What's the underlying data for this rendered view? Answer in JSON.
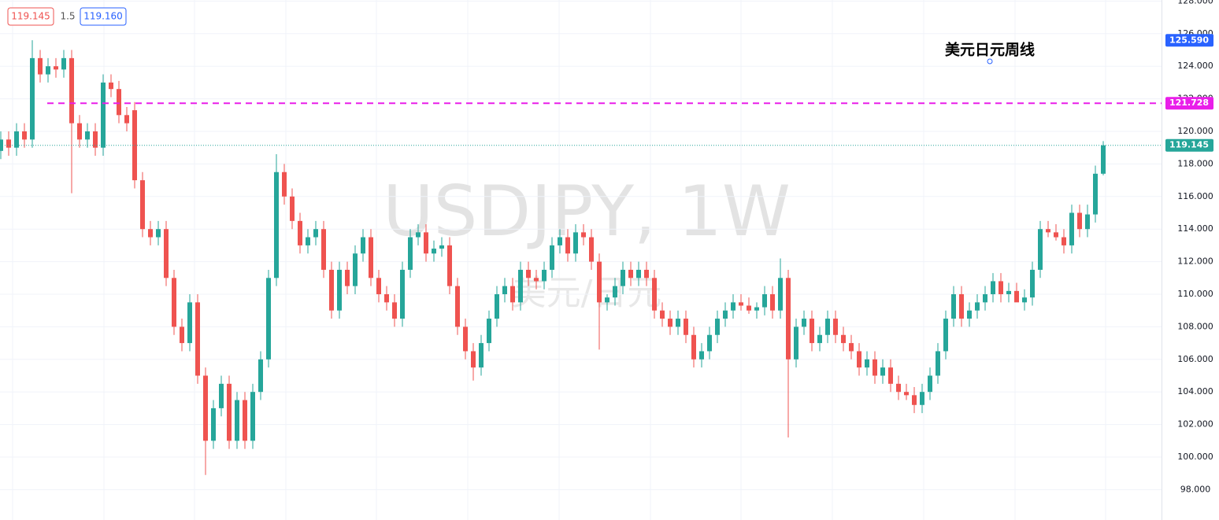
{
  "chart_data": {
    "type": "candlestick",
    "title": "USDJPY, 1W",
    "subtitle": "美元/日元",
    "annotation": "美元日元周线",
    "up_color": "#26a69a",
    "down_color": "#ef5350",
    "ylim": [
      96.135,
      128.068
    ],
    "yticks": [
      {
        "value": 98,
        "label": "98.000"
      },
      {
        "value": 100,
        "label": "100.000"
      },
      {
        "value": 102,
        "label": "102.000"
      },
      {
        "value": 104,
        "label": "104.000"
      },
      {
        "value": 106,
        "label": "106.000"
      },
      {
        "value": 108,
        "label": "108.000"
      },
      {
        "value": 110,
        "label": "110.000"
      },
      {
        "value": 112,
        "label": "112.000"
      },
      {
        "value": 114,
        "label": "114.000"
      },
      {
        "value": 116,
        "label": "116.000"
      },
      {
        "value": 118,
        "label": "118.000"
      },
      {
        "value": 120,
        "label": "120.000"
      },
      {
        "value": 122,
        "label": "122.000"
      },
      {
        "value": 124,
        "label": "124.000"
      },
      {
        "value": 126,
        "label": "126.000"
      },
      {
        "value": 128,
        "label": "128.000"
      }
    ],
    "grid": true,
    "legend": {
      "ask": "119.145",
      "spread": "1.5",
      "bid": "119.160"
    },
    "price_labels": [
      {
        "value": 125.59,
        "label": "125.590",
        "color": "#2962ff"
      },
      {
        "value": 121.728,
        "label": "121.728",
        "color": "#e91ee9",
        "line": "dashed"
      },
      {
        "value": 119.145,
        "label": "119.145",
        "color": "#26a69a",
        "line": "dotted"
      }
    ],
    "open": [
      118.8,
      119.5,
      119.0,
      120.0,
      119.5,
      124.5,
      123.5,
      124.0,
      123.8,
      124.5,
      120.5,
      119.5,
      120.0,
      119.0,
      123.0,
      122.6,
      121.0,
      121.3,
      117.0,
      114.0,
      113.5,
      114.0,
      111.0,
      108.0,
      107.0,
      109.5,
      105.0,
      101.0,
      103.0,
      104.5,
      101.0,
      103.5,
      101.0,
      104.0,
      106.0,
      111.0,
      117.5,
      116.0,
      114.5,
      113.0,
      113.5,
      114.0,
      111.5,
      109.0,
      111.5,
      110.5,
      112.5,
      113.5,
      111.0,
      110.0,
      109.5,
      108.5,
      111.5,
      113.5,
      113.8,
      112.5,
      112.8,
      113.0,
      110.5,
      108.0,
      106.5,
      105.5,
      107.0,
      108.5,
      110.0,
      110.5,
      109.5,
      111.5,
      111.0,
      110.8,
      111.5,
      113.0,
      113.5,
      112.5,
      113.8,
      113.5,
      112.0,
      109.5,
      109.8,
      110.5,
      111.5,
      111.0,
      111.5,
      111.0,
      109.0,
      108.5,
      108.0,
      108.5,
      107.5,
      106.0,
      106.5,
      107.5,
      108.5,
      109.0,
      109.5,
      109.3,
      109.0,
      109.2,
      110.0,
      109.0,
      111.0,
      106.0,
      108.0,
      108.5,
      107.0,
      107.5,
      108.5,
      107.5,
      107.0,
      106.5,
      105.5,
      106.0,
      105.0,
      105.5,
      104.5,
      104.0,
      103.8,
      103.2,
      104.0,
      105.0,
      106.5,
      108.5,
      110.0,
      108.5,
      109.0,
      109.5,
      110.0,
      110.8,
      110.0,
      110.2,
      109.5,
      109.8,
      111.5,
      114.0,
      113.8,
      113.5,
      113.0,
      115.0,
      114.0,
      114.9,
      117.4
    ],
    "high": [
      120.0,
      120.0,
      120.5,
      120.5,
      125.6,
      125.0,
      124.5,
      124.5,
      125.0,
      125.0,
      121.0,
      120.5,
      120.5,
      123.5,
      123.5,
      123.1,
      121.5,
      121.8,
      117.5,
      114.5,
      114.5,
      114.5,
      111.5,
      108.5,
      110.0,
      110.0,
      105.5,
      103.5,
      105.0,
      105.0,
      104.0,
      104.0,
      104.5,
      106.5,
      111.5,
      118.6,
      118.0,
      116.5,
      115.0,
      114.0,
      114.5,
      114.5,
      112.0,
      112.0,
      112.0,
      113.0,
      114.0,
      114.0,
      111.5,
      110.5,
      110.0,
      112.0,
      114.0,
      114.3,
      114.3,
      113.3,
      113.5,
      113.5,
      111.0,
      108.5,
      107.0,
      107.5,
      109.0,
      110.5,
      111.0,
      111.0,
      112.0,
      112.0,
      111.5,
      112.0,
      113.5,
      114.0,
      114.0,
      114.3,
      114.3,
      114.0,
      112.5,
      110.0,
      111.0,
      112.0,
      112.0,
      112.0,
      112.0,
      111.5,
      109.5,
      109.0,
      109.0,
      109.0,
      108.0,
      107.0,
      108.0,
      109.0,
      109.5,
      110.0,
      110.0,
      109.8,
      109.5,
      110.5,
      110.5,
      112.2,
      111.5,
      108.5,
      109.0,
      109.0,
      108.0,
      109.0,
      109.0,
      108.0,
      107.5,
      107.0,
      106.5,
      106.5,
      106.0,
      106.0,
      105.0,
      104.5,
      104.3,
      104.5,
      105.5,
      107.0,
      109.0,
      110.5,
      110.5,
      109.5,
      110.0,
      110.5,
      111.3,
      111.3,
      110.7,
      110.7,
      110.3,
      112.0,
      114.5,
      114.5,
      114.3,
      114.0,
      115.5,
      115.5,
      115.5,
      117.9,
      119.4
    ],
    "low": [
      118.3,
      118.5,
      118.5,
      119.0,
      119.0,
      123.0,
      123.0,
      123.3,
      123.3,
      116.2,
      119.0,
      119.0,
      118.5,
      118.5,
      122.1,
      120.5,
      120.0,
      116.5,
      113.5,
      113.0,
      113.0,
      110.5,
      107.5,
      106.5,
      106.5,
      104.5,
      98.9,
      100.5,
      102.5,
      100.5,
      100.5,
      100.5,
      100.5,
      103.5,
      105.5,
      110.5,
      115.5,
      114.0,
      112.5,
      112.5,
      113.0,
      111.0,
      108.5,
      108.5,
      110.0,
      110.0,
      112.0,
      110.5,
      109.5,
      109.0,
      108.0,
      108.0,
      111.0,
      113.0,
      112.0,
      112.0,
      112.3,
      110.0,
      107.5,
      106.0,
      104.7,
      105.0,
      106.5,
      108.0,
      109.5,
      109.0,
      109.0,
      110.5,
      110.3,
      110.3,
      111.0,
      112.5,
      112.0,
      112.0,
      113.0,
      111.5,
      106.6,
      109.0,
      109.3,
      110.0,
      110.5,
      110.5,
      110.5,
      108.5,
      108.0,
      107.5,
      107.5,
      107.0,
      105.5,
      105.5,
      106.0,
      107.0,
      108.0,
      108.5,
      109.0,
      108.8,
      108.5,
      108.7,
      108.5,
      108.5,
      101.2,
      105.5,
      107.5,
      106.5,
      106.5,
      107.0,
      107.0,
      106.5,
      106.0,
      105.0,
      105.0,
      104.5,
      104.5,
      104.0,
      103.5,
      103.5,
      102.7,
      102.7,
      103.5,
      104.5,
      106.0,
      108.0,
      108.0,
      108.0,
      108.5,
      109.0,
      109.5,
      109.5,
      109.5,
      109.7,
      109.0,
      109.3,
      111.0,
      113.5,
      113.3,
      112.5,
      112.5,
      113.5,
      113.5,
      114.4,
      117.3
    ],
    "close": [
      119.5,
      119.0,
      120.0,
      119.5,
      124.5,
      123.5,
      124.0,
      123.8,
      124.5,
      120.5,
      119.5,
      120.0,
      119.0,
      123.0,
      122.6,
      121.0,
      120.5,
      117.0,
      114.0,
      113.5,
      114.0,
      111.0,
      108.0,
      107.0,
      109.5,
      105.0,
      101.0,
      103.0,
      104.5,
      101.0,
      103.5,
      101.0,
      104.0,
      106.0,
      111.0,
      117.5,
      116.0,
      114.5,
      113.0,
      113.5,
      114.0,
      111.5,
      109.0,
      111.5,
      110.5,
      112.5,
      113.5,
      111.0,
      110.0,
      109.5,
      108.5,
      111.5,
      113.5,
      113.8,
      112.5,
      112.8,
      113.0,
      110.5,
      108.0,
      106.5,
      105.5,
      107.0,
      108.5,
      110.0,
      110.5,
      109.5,
      111.5,
      111.0,
      110.8,
      111.5,
      113.0,
      113.5,
      112.5,
      113.8,
      113.5,
      112.0,
      109.5,
      109.8,
      110.5,
      111.5,
      111.0,
      111.5,
      111.0,
      109.0,
      108.5,
      108.0,
      108.5,
      107.5,
      106.0,
      106.5,
      107.5,
      108.5,
      109.0,
      109.5,
      109.3,
      109.0,
      109.2,
      110.0,
      109.0,
      111.0,
      106.0,
      108.0,
      108.5,
      107.0,
      107.5,
      108.5,
      107.5,
      107.0,
      106.5,
      105.5,
      106.0,
      105.0,
      105.5,
      104.5,
      104.0,
      103.8,
      103.2,
      104.0,
      105.0,
      106.5,
      108.5,
      110.0,
      108.5,
      109.0,
      109.5,
      110.0,
      110.8,
      110.0,
      110.2,
      109.5,
      109.8,
      111.5,
      114.0,
      113.8,
      113.5,
      113.0,
      115.0,
      114.0,
      114.9,
      117.4,
      119.145
    ]
  }
}
